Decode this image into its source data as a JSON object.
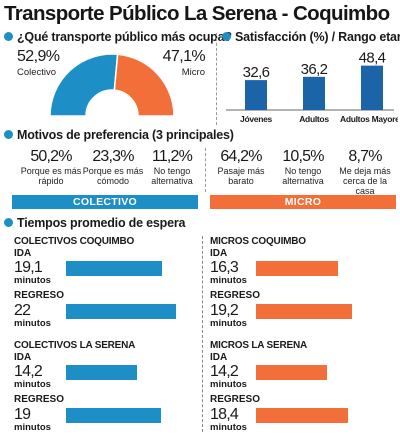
{
  "title": "Transporte Público La Serena - Coquimbo",
  "colors": {
    "blue": "#1d8fc6",
    "orange": "#f36f3a",
    "navy": "#1b64a8"
  },
  "icons": [
    "bullet-circle-icon"
  ],
  "chart_data": [
    {
      "type": "pie",
      "title": "¿Qué transporte público más ocupa?",
      "slices": [
        {
          "label": "Colectivo",
          "display": "52,9%",
          "value": 52.9
        },
        {
          "label": "Micro",
          "display": "47,1%",
          "value": 47.1
        }
      ]
    },
    {
      "type": "bar",
      "title": "Satisfacción (%) / Rango etario",
      "categories": [
        "Jóvenes",
        "Adultos",
        "Adultos Mayores"
      ],
      "values": [
        32.6,
        36.2,
        48.4
      ],
      "value_labels": [
        "32,6",
        "36,2",
        "48,4"
      ],
      "ylim": [
        0,
        60
      ]
    },
    {
      "type": "table",
      "title": "Motivos de preferencia (3 principales)",
      "groups": [
        {
          "name": "COLECTIVO",
          "items": [
            {
              "value": 50.2,
              "display": "50,2%",
              "label": "Porque es más rápido"
            },
            {
              "value": 23.3,
              "display": "23,3%",
              "label": "Porque es más cómodo"
            },
            {
              "value": 11.2,
              "display": "11,2%",
              "label": "No tengo alternativa"
            }
          ]
        },
        {
          "name": "MICRO",
          "items": [
            {
              "value": 64.2,
              "display": "64,2%",
              "label": "Pasaje más barato"
            },
            {
              "value": 10.5,
              "display": "10,5%",
              "label": "No tengo alternativa"
            },
            {
              "value": 8.7,
              "display": "8,7%",
              "label": "Me deja más cerca de la casa"
            }
          ]
        }
      ]
    },
    {
      "type": "bar",
      "title": "Tiempos promedio de espera",
      "unit": "minutos",
      "ida_label": "IDA",
      "regreso_label": "REGRESO",
      "xlim": [
        0,
        24
      ],
      "groups": [
        {
          "name": "COLECTIVOS COQUIMBO",
          "ida": 19.1,
          "ida_display": "19,1",
          "regreso": 22,
          "regreso_display": "22"
        },
        {
          "name": "MICROS COQUIMBO",
          "ida": 16.3,
          "ida_display": "16,3",
          "regreso": 19.2,
          "regreso_display": "19,2"
        },
        {
          "name": "COLECTIVOS LA SERENA",
          "ida": 14.2,
          "ida_display": "14,2",
          "regreso": 19,
          "regreso_display": "19"
        },
        {
          "name": "MICROS LA SERENA",
          "ida": 14.2,
          "ida_display": "14,2",
          "regreso": 18.4,
          "regreso_display": "18,4"
        }
      ]
    }
  ]
}
